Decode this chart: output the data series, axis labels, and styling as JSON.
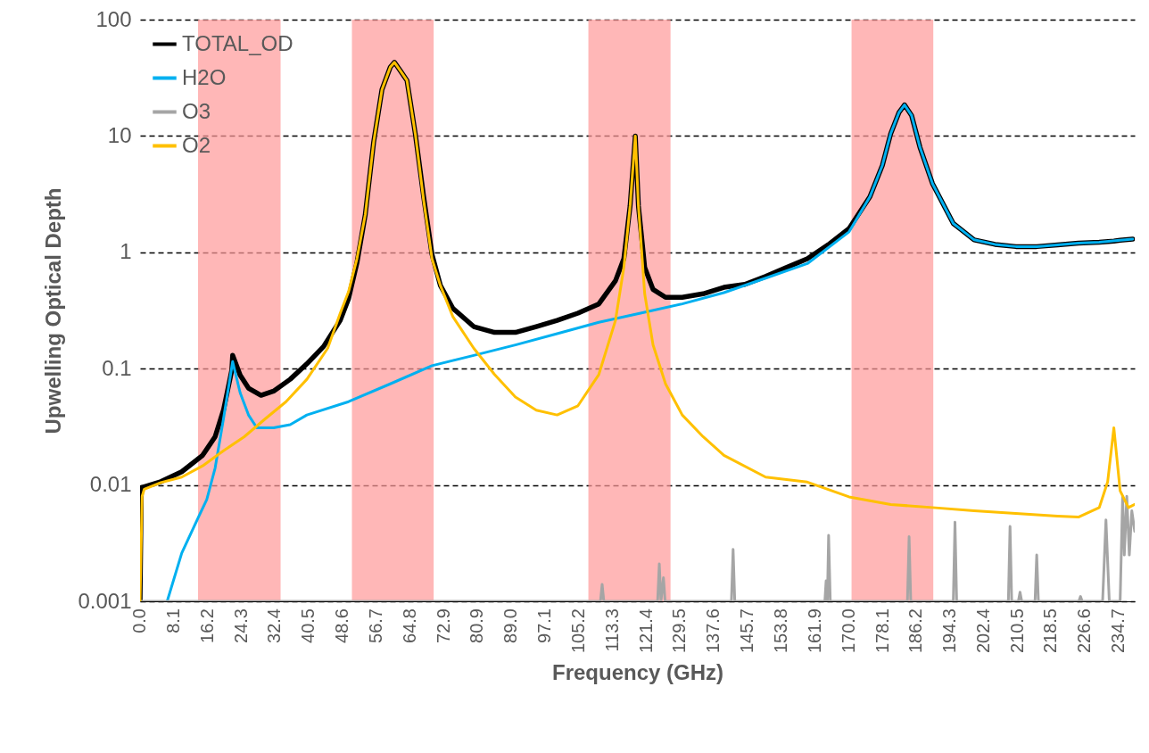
{
  "chart_data": {
    "type": "line",
    "xlabel": "Frequency (GHz)",
    "ylabel": "Upwelling Optical Depth",
    "log": "y",
    "grid": "y",
    "legend": "top left",
    "xlim": [
      0,
      238.5
    ],
    "xticks": [
      {
        "value": 0,
        "label": "0.0"
      },
      8.1,
      16.2,
      24.3,
      32.4,
      40.5,
      48.6,
      56.7,
      64.8,
      72.9,
      80.9,
      {
        "value": 89,
        "label": "89.0"
      },
      97.1,
      105.2,
      113.3,
      121.4,
      129.5,
      137.6,
      145.7,
      153.8,
      161.9,
      {
        "value": 170,
        "label": "170.0"
      },
      178.1,
      186.2,
      194.3,
      202.4,
      210.5,
      218.5,
      226.6,
      234.7
    ],
    "ylim": [
      0.001,
      100
    ],
    "yticks": [
      0.001,
      0.01,
      0.1,
      1,
      10,
      100
    ],
    "bands": [
      {
        "axis": "x",
        "from": 13.9,
        "to": 33.7,
        "color": "#ff9999"
      },
      {
        "axis": "x",
        "from": 50.8,
        "to": 70.4,
        "color": "#ff9999"
      },
      {
        "axis": "x",
        "from": 107.5,
        "to": 127.2,
        "color": "#ff9999"
      },
      {
        "axis": "x",
        "from": 170.6,
        "to": 190.2,
        "color": "#ff9999"
      }
    ],
    "series": [
      {
        "name": "TOTAL_OD",
        "color": "#000000",
        "x": [
          0,
          0.3,
          5,
          10,
          15,
          18,
          20,
          22,
          22.2,
          24,
          26,
          29,
          32,
          36,
          40,
          44,
          48,
          50,
          52,
          54,
          56,
          58,
          60,
          61,
          62.5,
          64,
          66,
          68,
          70,
          72,
          75,
          80,
          85,
          90,
          95,
          100,
          105,
          110,
          114,
          116,
          117.5,
          118.75,
          119.5,
          121,
          123,
          126,
          130,
          135,
          140,
          145,
          150,
          155,
          160,
          165,
          170,
          175,
          178,
          180,
          182,
          183.3,
          185,
          187,
          190,
          195,
          200,
          205,
          210,
          215,
          220,
          225,
          230,
          233.5,
          235,
          238
        ],
        "values": [
          0.001,
          0.0095,
          0.0107,
          0.013,
          0.018,
          0.026,
          0.044,
          0.097,
          0.13,
          0.088,
          0.068,
          0.059,
          0.064,
          0.081,
          0.11,
          0.155,
          0.26,
          0.4,
          0.81,
          2.1,
          8.8,
          25,
          39,
          43,
          36,
          30,
          10.4,
          3,
          0.96,
          0.52,
          0.33,
          0.23,
          0.205,
          0.205,
          0.23,
          0.26,
          0.3,
          0.36,
          0.57,
          0.88,
          2.5,
          10,
          2.5,
          0.74,
          0.48,
          0.41,
          0.41,
          0.44,
          0.5,
          0.53,
          0.62,
          0.74,
          0.88,
          1.16,
          1.6,
          3,
          5.6,
          10.5,
          16,
          18.5,
          15,
          8,
          3.9,
          1.77,
          1.28,
          1.17,
          1.12,
          1.12,
          1.16,
          1.2,
          1.22,
          1.25,
          1.27,
          1.3
        ]
      },
      {
        "name": "H2O",
        "color": "#00b0f0",
        "x": [
          6.5,
          10,
          14,
          16,
          18,
          20,
          22.2,
          24,
          26,
          28,
          32,
          36,
          40,
          50,
          60,
          70,
          80,
          90,
          100,
          110,
          120,
          130,
          140,
          150,
          160,
          170,
          175,
          178,
          180,
          182,
          183.3,
          185,
          187,
          190,
          195,
          200,
          205,
          210,
          215,
          220,
          225,
          230,
          235,
          238
        ],
        "values": [
          0.001,
          0.0026,
          0.0053,
          0.0075,
          0.014,
          0.037,
          0.115,
          0.062,
          0.04,
          0.031,
          0.031,
          0.033,
          0.04,
          0.052,
          0.074,
          0.106,
          0.13,
          0.16,
          0.2,
          0.25,
          0.3,
          0.36,
          0.45,
          0.6,
          0.8,
          1.5,
          3,
          5.6,
          10.5,
          16,
          18.5,
          15,
          8,
          3.9,
          1.77,
          1.28,
          1.17,
          1.12,
          1.12,
          1.16,
          1.2,
          1.22,
          1.27,
          1.3
        ]
      },
      {
        "name": "O3",
        "color": "#a5a5a5",
        "x": [
          0,
          110.4,
          110.8,
          111.2,
          124.1,
          124.5,
          124.9,
          125.5,
          125.9,
          141.8,
          142.2,
          142.6,
          164.2,
          164.5,
          164.8,
          165.1,
          165.5,
          184,
          184.4,
          184.8,
          195,
          195.4,
          195.8,
          208.2,
          208.6,
          209,
          210.6,
          211,
          211.4,
          214.6,
          215,
          215.4,
          225.1,
          225.5,
          225.9,
          230.8,
          231.6,
          232.4,
          235,
          235.6,
          236,
          236.6,
          237.2,
          237.8,
          238.5
        ],
        "values": [
          0.001,
          0.001,
          0.0014,
          0.001,
          0.001,
          0.0021,
          0.001,
          0.0016,
          0.001,
          0.001,
          0.0028,
          0.001,
          0.001,
          0.0015,
          0.001,
          0.0037,
          0.001,
          0.001,
          0.0036,
          0.001,
          0.001,
          0.0048,
          0.001,
          0.001,
          0.0044,
          0.001,
          0.001,
          0.0012,
          0.001,
          0.001,
          0.0025,
          0.001,
          0.001,
          0.0011,
          0.001,
          0.001,
          0.005,
          0.001,
          0.001,
          0.008,
          0.0025,
          0.008,
          0.0025,
          0.006,
          0.004
        ]
      },
      {
        "name": "O2",
        "color": "#ffc000",
        "x": [
          0,
          0.5,
          1,
          5,
          10,
          15,
          20,
          25,
          30,
          35,
          40,
          45,
          48,
          50,
          52,
          54,
          56,
          58,
          60,
          61,
          62.5,
          64,
          66,
          68,
          70,
          72,
          75,
          80,
          85,
          90,
          95,
          100,
          105,
          110,
          114,
          116,
          117.5,
          118.75,
          119.5,
          121,
          123,
          126,
          130,
          135,
          140,
          150,
          160,
          170,
          180,
          190,
          200,
          210,
          220,
          225,
          230,
          232,
          233.5,
          235,
          237,
          238.5
        ],
        "values": [
          0.001,
          0.008,
          0.0092,
          0.0105,
          0.0117,
          0.0146,
          0.0197,
          0.026,
          0.037,
          0.052,
          0.081,
          0.15,
          0.3,
          0.46,
          0.88,
          2.1,
          8.8,
          25,
          39,
          43,
          36,
          30,
          10.4,
          2.8,
          0.88,
          0.52,
          0.28,
          0.15,
          0.089,
          0.057,
          0.044,
          0.04,
          0.048,
          0.089,
          0.26,
          0.74,
          2.5,
          10,
          2.5,
          0.44,
          0.16,
          0.074,
          0.04,
          0.026,
          0.018,
          0.0117,
          0.0106,
          0.0079,
          0.0068,
          0.0064,
          0.006,
          0.0057,
          0.0054,
          0.0053,
          0.0064,
          0.0106,
          0.031,
          0.0089,
          0.0064,
          0.0068
        ]
      }
    ]
  }
}
